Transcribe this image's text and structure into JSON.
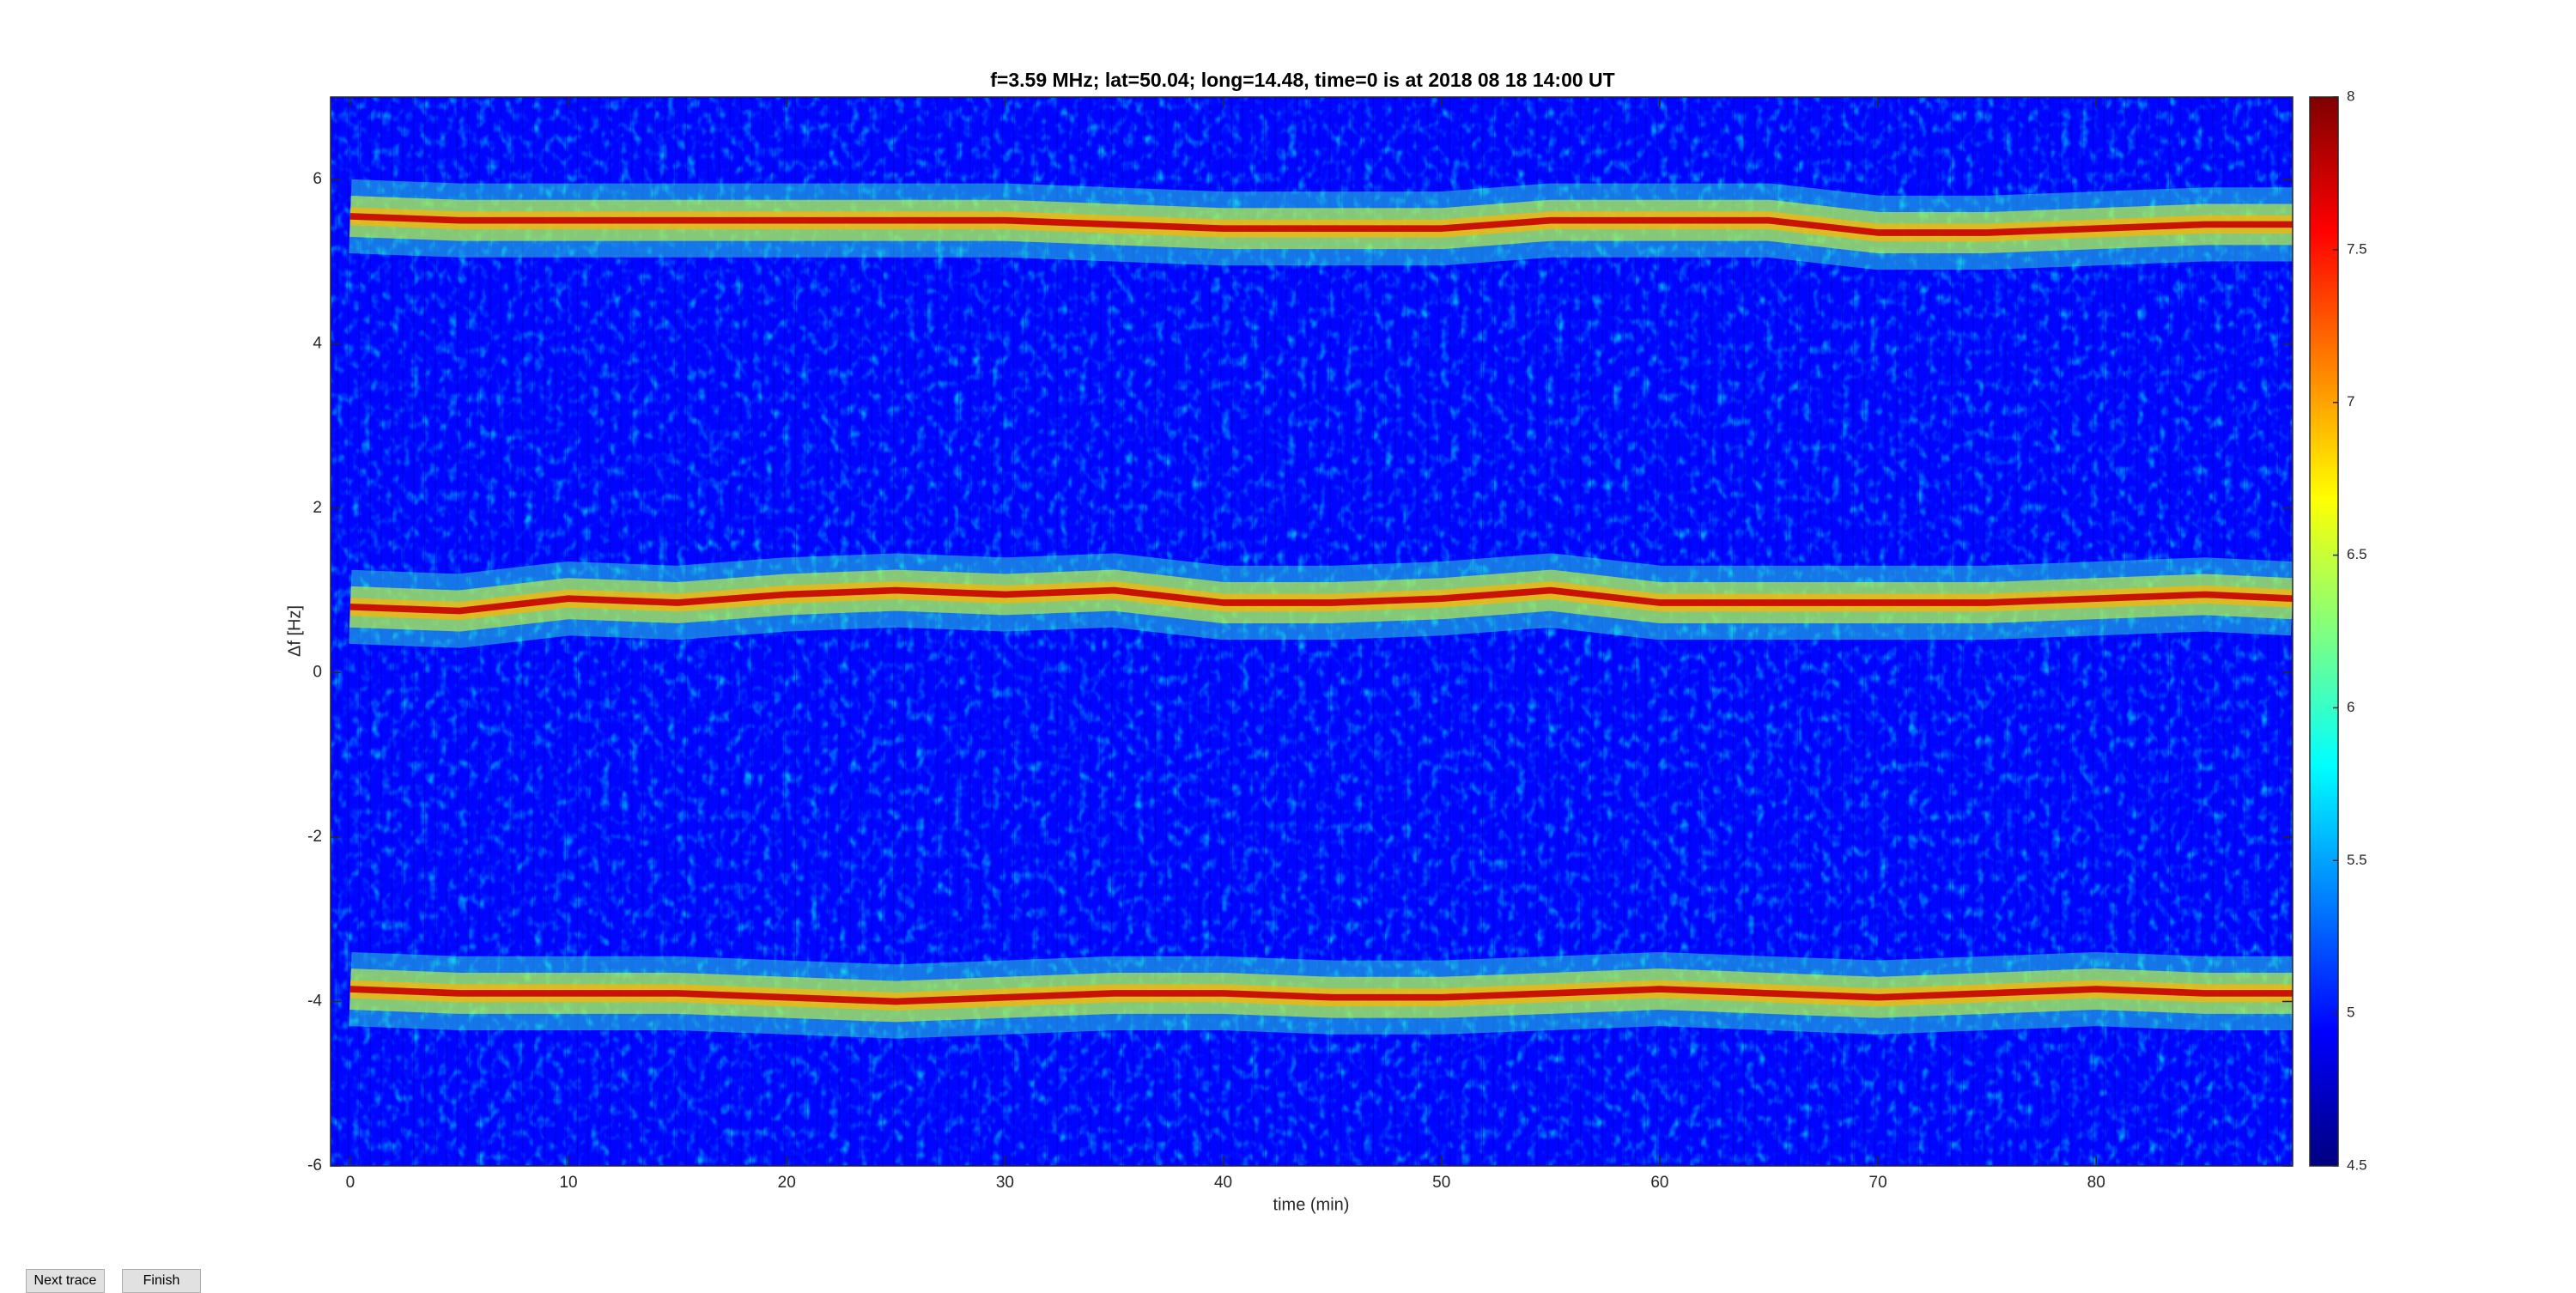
{
  "chart_data": {
    "type": "spectrogram",
    "title": "f=3.59 MHz;  lat=50.04; long=14.48, time=0 is at 2018 08 18 14:00 UT",
    "xlabel": "time (min)",
    "ylabel": "Δf [Hz]",
    "xlim": [
      -0.9,
      89
    ],
    "xticks": [
      0,
      10,
      20,
      30,
      40,
      50,
      60,
      70,
      80
    ],
    "ylim": [
      -6,
      7
    ],
    "yticks": [
      -6,
      -4,
      -2,
      0,
      2,
      4,
      6
    ],
    "colormap": "jet",
    "clim": [
      4.5,
      8
    ],
    "cticks": [
      4.5,
      5,
      5.5,
      6,
      6.5,
      7,
      7.5,
      8
    ],
    "x": [
      0,
      5,
      10,
      15,
      20,
      25,
      30,
      35,
      40,
      45,
      50,
      55,
      60,
      65,
      70,
      75,
      80,
      85,
      89
    ],
    "series": [
      {
        "values": [
          5.55,
          5.5,
          5.5,
          5.5,
          5.5,
          5.5,
          5.5,
          5.45,
          5.4,
          5.4,
          5.4,
          5.5,
          5.5,
          5.5,
          5.35,
          5.35,
          5.4,
          5.45,
          5.45
        ]
      },
      {
        "values": [
          0.8,
          0.75,
          0.9,
          0.85,
          0.95,
          1.0,
          0.95,
          1.0,
          0.85,
          0.85,
          0.9,
          1.0,
          0.85,
          0.85,
          0.85,
          0.85,
          0.9,
          0.95,
          0.9
        ]
      },
      {
        "values": [
          -3.85,
          -3.9,
          -3.9,
          -3.9,
          -3.95,
          -4.0,
          -3.95,
          -3.9,
          -3.9,
          -3.95,
          -3.95,
          -3.9,
          -3.85,
          -3.9,
          -3.95,
          -3.9,
          -3.85,
          -3.9,
          -3.9
        ]
      }
    ]
  },
  "buttons": [
    "Next trace",
    "Finish"
  ]
}
